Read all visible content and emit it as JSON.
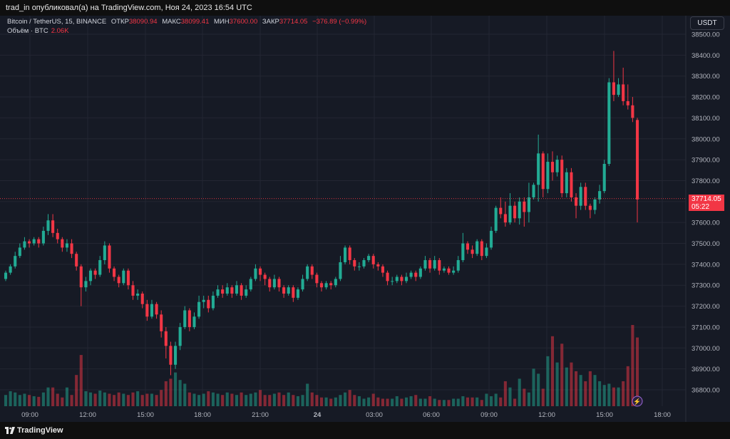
{
  "header": {
    "publish_line": "trad_in опубликовал(а) на TradingView.com, Ноя 24, 2023 16:54 UTC"
  },
  "legend": {
    "symbol": "Bitcoin / TetherUS, 15, BINANCE",
    "open_label": "ОТКР",
    "open_value": "38090.94",
    "high_label": "МАКС",
    "high_value": "38099.41",
    "low_label": "МИН",
    "low_value": "37600.00",
    "close_label": "ЗАКР",
    "close_value": "37714.05",
    "change": "−376.89 (−0.99%)",
    "volume_label": "Объём · BTC",
    "volume_value": "2.06K"
  },
  "toolbar": {
    "currency": "USDT"
  },
  "price_tag": {
    "price": "37714.05",
    "countdown": "05:22"
  },
  "footer": {
    "brand": "TradingView"
  },
  "colors": {
    "up": "#22ab94",
    "down": "#f23645",
    "background": "#161a25",
    "grid": "#232632"
  },
  "chart_data": {
    "type": "candlestick",
    "symbol": "Bitcoin / TetherUS",
    "interval": "15",
    "exchange": "BINANCE",
    "y_axis": {
      "labels": [
        "38500.00",
        "38400.00",
        "38300.00",
        "38200.00",
        "38100.00",
        "38000.00",
        "37900.00",
        "37800.00",
        "37700.00",
        "37600.00",
        "37500.00",
        "37400.00",
        "37300.00",
        "37200.00",
        "37100.00",
        "37000.00",
        "36900.00",
        "36800.00"
      ],
      "range": [
        36720,
        38560
      ],
      "position": "right"
    },
    "x_axis": {
      "labels": [
        "09:00",
        "12:00",
        "15:00",
        "18:00",
        "21:00",
        "24",
        "03:00",
        "06:00",
        "09:00",
        "12:00",
        "15:00",
        "18:00"
      ],
      "bold_labels": [
        "24"
      ]
    },
    "last_price": 37714.05,
    "candles": [
      [
        37330,
        37360,
        37320,
        37370
      ],
      [
        37360,
        37390,
        37350,
        37400
      ],
      [
        37390,
        37440,
        37380,
        37460
      ],
      [
        37440,
        37480,
        37430,
        37500
      ],
      [
        37480,
        37510,
        37470,
        37530
      ],
      [
        37510,
        37500,
        37480,
        37520
      ],
      [
        37500,
        37520,
        37490,
        37530
      ],
      [
        37520,
        37500,
        37480,
        37530
      ],
      [
        37500,
        37560,
        37490,
        37580
      ],
      [
        37560,
        37610,
        37540,
        37640
      ],
      [
        37610,
        37550,
        37530,
        37640
      ],
      [
        37550,
        37520,
        37500,
        37570
      ],
      [
        37520,
        37480,
        37460,
        37530
      ],
      [
        37480,
        37500,
        37460,
        37520
      ],
      [
        37500,
        37450,
        37430,
        37520
      ],
      [
        37450,
        37390,
        37370,
        37460
      ],
      [
        37390,
        37290,
        37200,
        37400
      ],
      [
        37290,
        37320,
        37270,
        37340
      ],
      [
        37320,
        37370,
        37300,
        37380
      ],
      [
        37370,
        37350,
        37330,
        37380
      ],
      [
        37350,
        37420,
        37340,
        37440
      ],
      [
        37420,
        37490,
        37400,
        37510
      ],
      [
        37490,
        37380,
        37360,
        37500
      ],
      [
        37380,
        37340,
        37320,
        37390
      ],
      [
        37340,
        37310,
        37290,
        37350
      ],
      [
        37310,
        37370,
        37300,
        37380
      ],
      [
        37370,
        37300,
        37280,
        37380
      ],
      [
        37300,
        37250,
        37230,
        37320
      ],
      [
        37250,
        37260,
        37230,
        37280
      ],
      [
        37260,
        37210,
        37190,
        37270
      ],
      [
        37210,
        37150,
        37130,
        37230
      ],
      [
        37150,
        37210,
        37140,
        37230
      ],
      [
        37210,
        37160,
        37140,
        37220
      ],
      [
        37160,
        37080,
        37050,
        37180
      ],
      [
        37080,
        37010,
        36950,
        37100
      ],
      [
        37010,
        36920,
        36870,
        37030
      ],
      [
        36920,
        37010,
        36900,
        37030
      ],
      [
        37010,
        37100,
        36990,
        37120
      ],
      [
        37100,
        37180,
        37090,
        37200
      ],
      [
        37180,
        37100,
        37080,
        37190
      ],
      [
        37100,
        37150,
        37090,
        37170
      ],
      [
        37150,
        37220,
        37140,
        37250
      ],
      [
        37220,
        37230,
        37190,
        37250
      ],
      [
        37230,
        37190,
        37170,
        37250
      ],
      [
        37190,
        37250,
        37180,
        37270
      ],
      [
        37250,
        37280,
        37240,
        37300
      ],
      [
        37280,
        37260,
        37240,
        37300
      ],
      [
        37260,
        37290,
        37250,
        37310
      ],
      [
        37290,
        37260,
        37240,
        37300
      ],
      [
        37260,
        37300,
        37250,
        37320
      ],
      [
        37300,
        37250,
        37230,
        37310
      ],
      [
        37250,
        37280,
        37240,
        37300
      ],
      [
        37280,
        37330,
        37270,
        37340
      ],
      [
        37330,
        37380,
        37320,
        37400
      ],
      [
        37380,
        37350,
        37320,
        37390
      ],
      [
        37350,
        37330,
        37300,
        37360
      ],
      [
        37330,
        37290,
        37270,
        37340
      ],
      [
        37290,
        37330,
        37280,
        37350
      ],
      [
        37330,
        37290,
        37270,
        37340
      ],
      [
        37290,
        37260,
        37240,
        37300
      ],
      [
        37260,
        37290,
        37250,
        37300
      ],
      [
        37290,
        37240,
        37220,
        37300
      ],
      [
        37240,
        37280,
        37230,
        37290
      ],
      [
        37280,
        37330,
        37270,
        37350
      ],
      [
        37330,
        37390,
        37320,
        37400
      ],
      [
        37390,
        37350,
        37330,
        37400
      ],
      [
        37350,
        37310,
        37290,
        37360
      ],
      [
        37310,
        37290,
        37270,
        37320
      ],
      [
        37290,
        37310,
        37280,
        37320
      ],
      [
        37310,
        37300,
        37280,
        37320
      ],
      [
        37300,
        37330,
        37290,
        37340
      ],
      [
        37330,
        37410,
        37320,
        37440
      ],
      [
        37410,
        37480,
        37400,
        37490
      ],
      [
        37480,
        37420,
        37400,
        37490
      ],
      [
        37420,
        37390,
        37370,
        37430
      ],
      [
        37390,
        37390,
        37370,
        37410
      ],
      [
        37390,
        37420,
        37380,
        37430
      ],
      [
        37420,
        37440,
        37410,
        37450
      ],
      [
        37440,
        37400,
        37380,
        37450
      ],
      [
        37400,
        37390,
        37370,
        37410
      ],
      [
        37390,
        37360,
        37340,
        37400
      ],
      [
        37360,
        37320,
        37300,
        37370
      ],
      [
        37320,
        37320,
        37300,
        37340
      ],
      [
        37320,
        37340,
        37310,
        37350
      ],
      [
        37340,
        37320,
        37300,
        37350
      ],
      [
        37320,
        37340,
        37310,
        37360
      ],
      [
        37340,
        37360,
        37330,
        37370
      ],
      [
        37360,
        37340,
        37320,
        37370
      ],
      [
        37340,
        37380,
        37330,
        37390
      ],
      [
        37380,
        37420,
        37370,
        37440
      ],
      [
        37420,
        37380,
        37360,
        37430
      ],
      [
        37380,
        37420,
        37370,
        37440
      ],
      [
        37420,
        37370,
        37350,
        37430
      ],
      [
        37370,
        37380,
        37360,
        37390
      ],
      [
        37380,
        37360,
        37350,
        37390
      ],
      [
        37360,
        37370,
        37350,
        37390
      ],
      [
        37370,
        37420,
        37360,
        37440
      ],
      [
        37420,
        37500,
        37410,
        37550
      ],
      [
        37500,
        37470,
        37450,
        37510
      ],
      [
        37470,
        37450,
        37430,
        37490
      ],
      [
        37450,
        37510,
        37440,
        37520
      ],
      [
        37510,
        37440,
        37420,
        37520
      ],
      [
        37440,
        37480,
        37430,
        37500
      ],
      [
        37480,
        37560,
        37470,
        37580
      ],
      [
        37560,
        37670,
        37550,
        37680
      ],
      [
        37670,
        37640,
        37620,
        37720
      ],
      [
        37640,
        37600,
        37580,
        37700
      ],
      [
        37600,
        37680,
        37590,
        37740
      ],
      [
        37680,
        37620,
        37600,
        37700
      ],
      [
        37620,
        37700,
        37590,
        37720
      ],
      [
        37700,
        37650,
        37580,
        37720
      ],
      [
        37650,
        37720,
        37600,
        37790
      ],
      [
        37720,
        37780,
        37710,
        37790
      ],
      [
        37780,
        37930,
        37700,
        38020
      ],
      [
        37930,
        37760,
        37720,
        37940
      ],
      [
        37760,
        37890,
        37740,
        37930
      ],
      [
        37890,
        37840,
        37800,
        37940
      ],
      [
        37840,
        37900,
        37820,
        37920
      ],
      [
        37900,
        37740,
        37720,
        37920
      ],
      [
        37740,
        37840,
        37720,
        37860
      ],
      [
        37840,
        37720,
        37700,
        37860
      ],
      [
        37720,
        37680,
        37620,
        37740
      ],
      [
        37680,
        37770,
        37660,
        37790
      ],
      [
        37770,
        37680,
        37660,
        37790
      ],
      [
        37680,
        37660,
        37620,
        37690
      ],
      [
        37660,
        37710,
        37640,
        37720
      ],
      [
        37710,
        37750,
        37690,
        37780
      ],
      [
        37750,
        37880,
        37740,
        37900
      ],
      [
        37880,
        38270,
        37870,
        38290
      ],
      [
        38270,
        38210,
        38180,
        38420
      ],
      [
        38210,
        38260,
        38200,
        38290
      ],
      [
        38260,
        38180,
        38160,
        38340
      ],
      [
        38180,
        38160,
        38140,
        38260
      ],
      [
        38160,
        38100,
        38080,
        38200
      ],
      [
        38090,
        37710,
        37600,
        38100
      ]
    ],
    "volumes": [
      18,
      24,
      22,
      18,
      20,
      18,
      16,
      15,
      22,
      30,
      30,
      20,
      14,
      30,
      18,
      50,
      82,
      24,
      22,
      20,
      25,
      22,
      20,
      18,
      22,
      20,
      18,
      22,
      24,
      18,
      20,
      20,
      18,
      26,
      40,
      44,
      54,
      42,
      36,
      22,
      20,
      18,
      20,
      24,
      22,
      20,
      18,
      22,
      20,
      18,
      22,
      18,
      20,
      22,
      26,
      18,
      18,
      20,
      22,
      18,
      22,
      18,
      16,
      18,
      36,
      22,
      18,
      14,
      14,
      12,
      14,
      18,
      22,
      26,
      18,
      16,
      12,
      14,
      20,
      14,
      12,
      12,
      12,
      16,
      12,
      14,
      16,
      18,
      12,
      12,
      16,
      12,
      10,
      10,
      10,
      12,
      12,
      16,
      14,
      14,
      14,
      10,
      20,
      16,
      20,
      14,
      40,
      30,
      12,
      44,
      28,
      22,
      60,
      52,
      28,
      80,
      112,
      70,
      100,
      62,
      70,
      56,
      50,
      40,
      56,
      50,
      40,
      34,
      36,
      30,
      30,
      40,
      64,
      130,
      110,
      72,
      60,
      36,
      30,
      112
    ]
  }
}
